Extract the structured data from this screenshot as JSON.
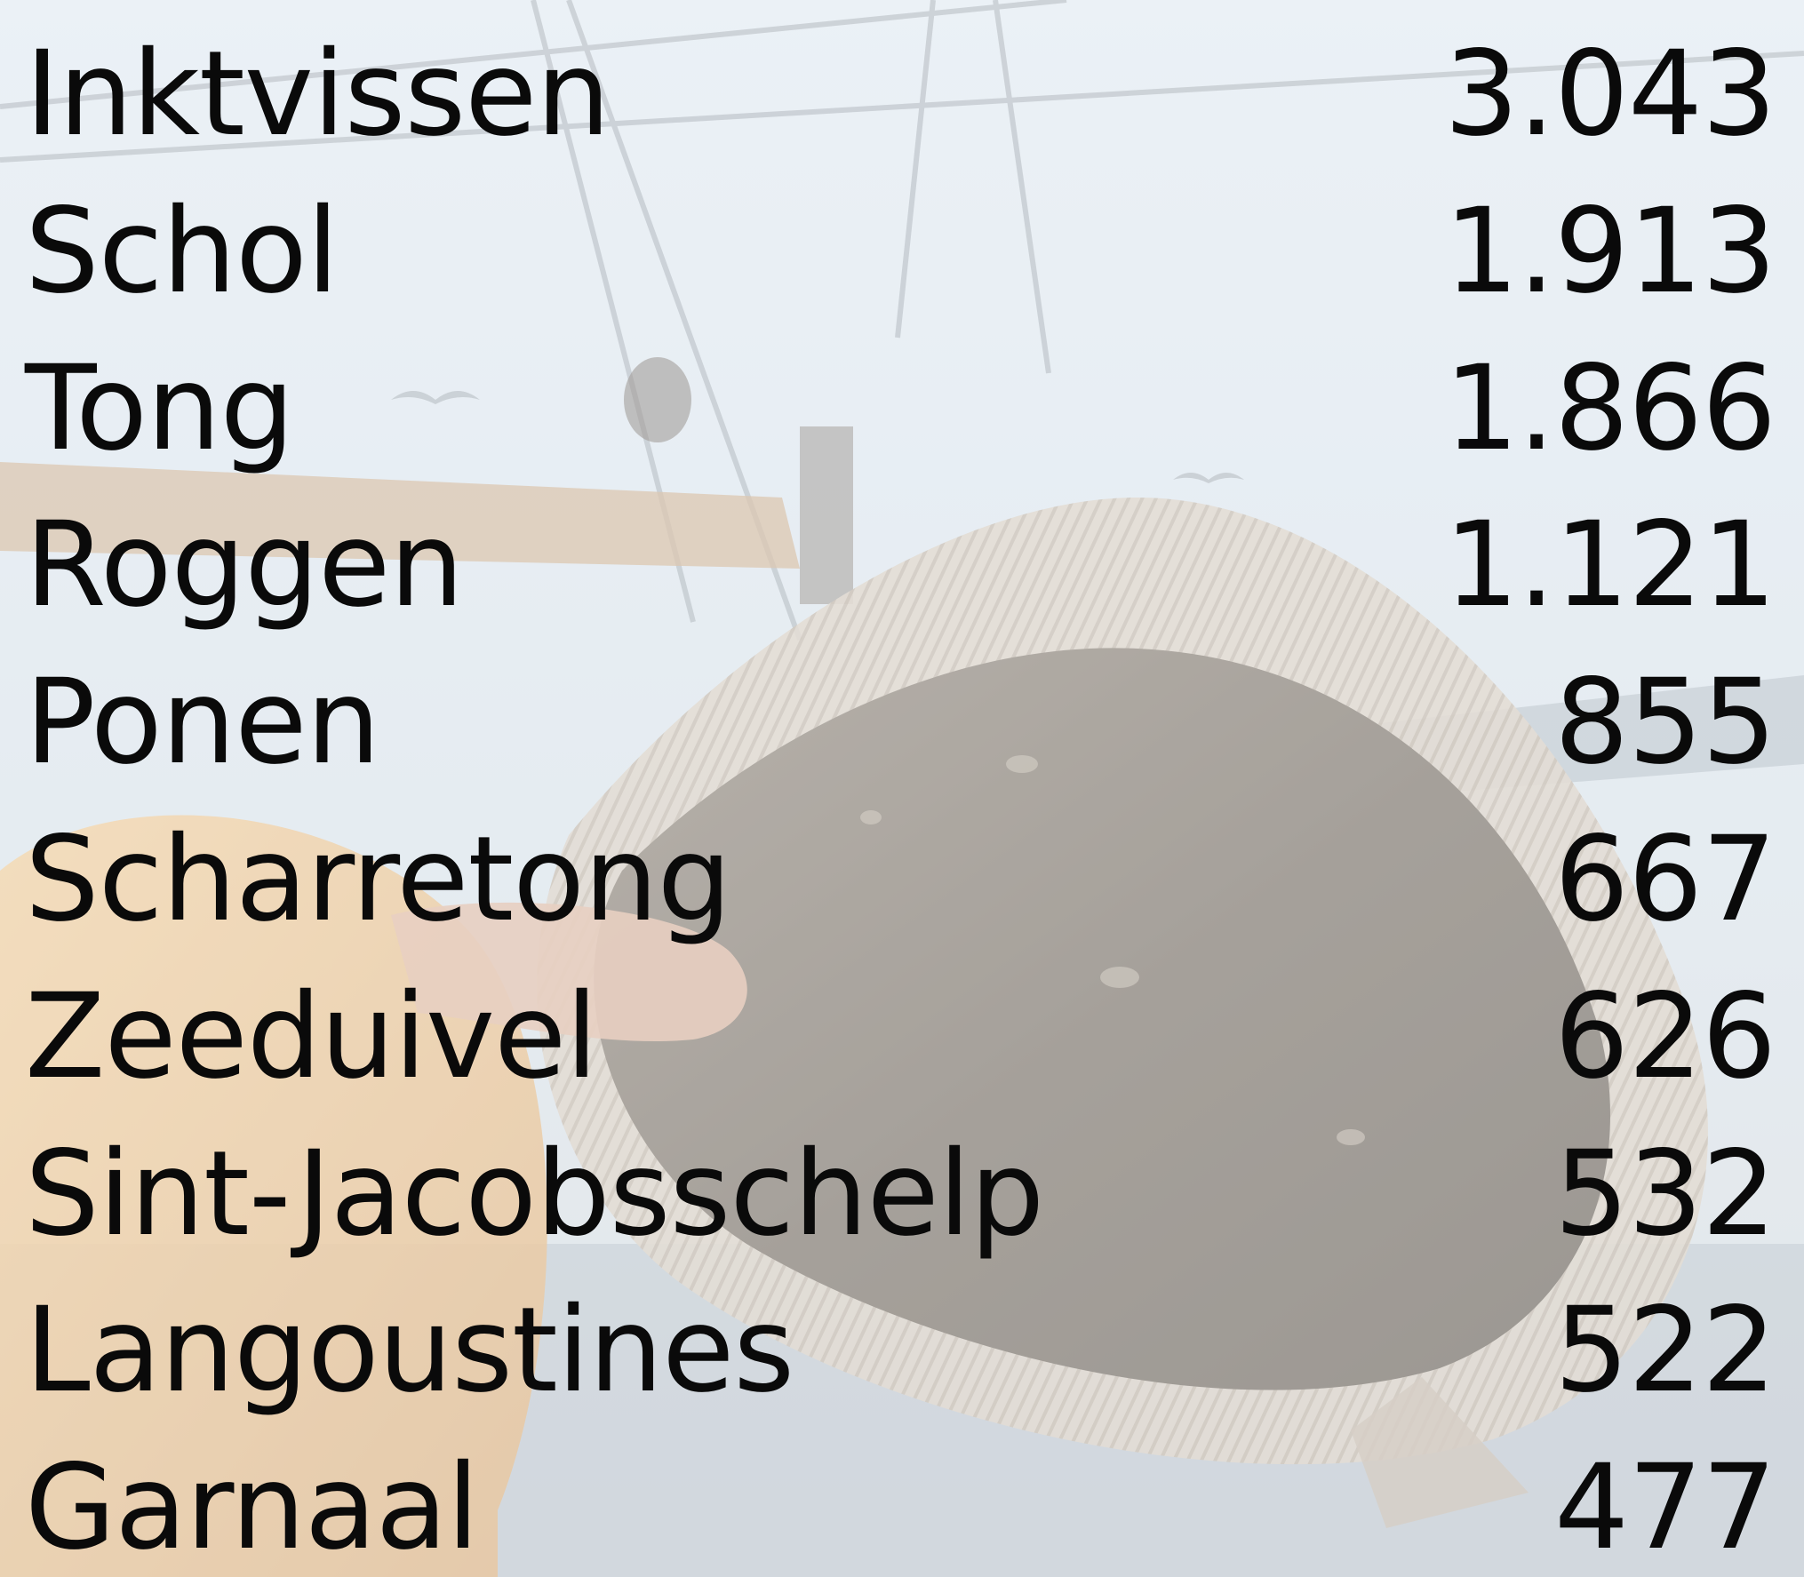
{
  "chart_data": {
    "type": "table",
    "columns": [
      "",
      ""
    ],
    "rows": [
      {
        "label": "Inktvissen",
        "value": "3.043"
      },
      {
        "label": "Schol",
        "value": "1.913"
      },
      {
        "label": "Tong",
        "value": "1.866"
      },
      {
        "label": "Roggen",
        "value": "1.121"
      },
      {
        "label": "Ponen",
        "value": "855"
      },
      {
        "label": "Scharretong",
        "value": "667"
      },
      {
        "label": "Zeeduivel",
        "value": "626"
      },
      {
        "label": "Sint-Jacobsschelp",
        "value": "532"
      },
      {
        "label": "Langoustines",
        "value": "522"
      },
      {
        "label": "Garnaal",
        "value": "477"
      }
    ]
  },
  "colors": {
    "text": "#0a0a0a",
    "sky": "#dce6ef",
    "fish_body": "#7a7268",
    "fish_fin": "#c9bfb2",
    "glove": "#e8b878",
    "hand": "#d6b09a",
    "rail": "#c8a888"
  },
  "background": {
    "photo": "fisherman-holding-flatfish-photo"
  }
}
